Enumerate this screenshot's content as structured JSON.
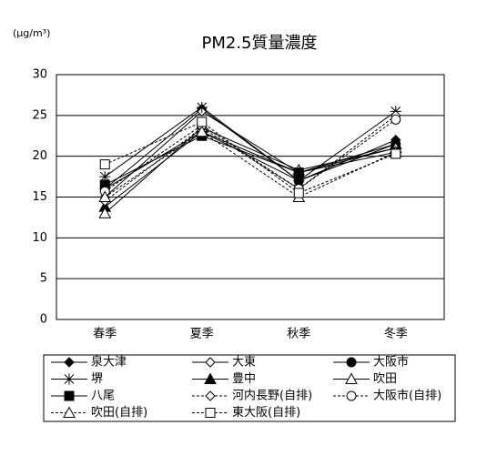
{
  "chart_data": {
    "type": "line",
    "title": "PM2.5質量濃度",
    "y_label": "(μg/m³)",
    "categories": [
      "春季",
      "夏季",
      "秋季",
      "冬季"
    ],
    "ylim": [
      0,
      30
    ],
    "yticks": [
      0,
      5,
      10,
      15,
      20,
      25,
      30
    ],
    "grid": true,
    "series": [
      {
        "name": "泉大津",
        "color": "#000000",
        "marker": "diamond",
        "filled": true,
        "line_style": "solid",
        "values": [
          16,
          25.8,
          17,
          22
        ]
      },
      {
        "name": "大東",
        "color": "#000000",
        "marker": "diamond",
        "filled": false,
        "line_style": "solid",
        "values": [
          15,
          25.5,
          18,
          21
        ]
      },
      {
        "name": "大阪市",
        "color": "#000000",
        "marker": "circle",
        "filled": true,
        "line_style": "solid",
        "values": [
          16,
          23,
          17,
          21.5
        ]
      },
      {
        "name": "堺",
        "color": "#000000",
        "marker": "asterisk",
        "filled": false,
        "line_style": "solid",
        "values": [
          17.5,
          26,
          17,
          25.5
        ]
      },
      {
        "name": "豊中",
        "color": "#000000",
        "marker": "triangle",
        "filled": true,
        "line_style": "solid",
        "values": [
          13.8,
          23,
          18,
          21.5
        ]
      },
      {
        "name": "吹田",
        "color": "#000000",
        "marker": "triangle",
        "filled": false,
        "line_style": "solid",
        "values": [
          13,
          23.5,
          18.3,
          21
        ]
      },
      {
        "name": "八尾",
        "color": "#000000",
        "marker": "square",
        "filled": true,
        "line_style": "solid",
        "values": [
          16.5,
          22.5,
          18,
          20.5
        ]
      },
      {
        "name": "河内長野(自排)",
        "color": "#000000",
        "marker": "diamond",
        "filled": false,
        "line_style": "dashed",
        "values": [
          14.5,
          23.5,
          16,
          25
        ]
      },
      {
        "name": "大阪市(自排)",
        "color": "#000000",
        "marker": "circle",
        "filled": false,
        "line_style": "dashed",
        "values": [
          15.7,
          23.8,
          16,
          24.5
        ]
      },
      {
        "name": "吹田(自排)",
        "color": "#000000",
        "marker": "triangle",
        "filled": false,
        "line_style": "dashed",
        "values": [
          15,
          23,
          15,
          20.5
        ]
      },
      {
        "name": "東大阪(自排)",
        "color": "#000000",
        "marker": "square",
        "filled": false,
        "line_style": "dashed",
        "values": [
          19,
          24.2,
          15.5,
          20.3
        ]
      }
    ]
  }
}
